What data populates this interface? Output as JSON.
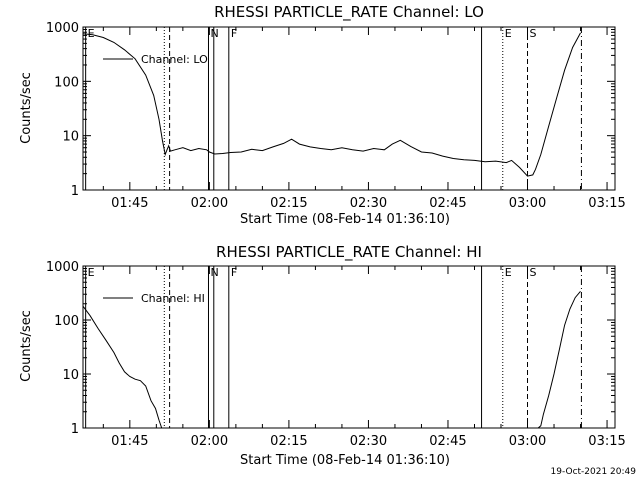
{
  "chart_data": [
    {
      "type": "line",
      "title": "RHESSI PARTICLE_RATE Channel: LO",
      "xlabel": "Start Time (08-Feb-14 01:36:10)",
      "ylabel": "Counts/sec",
      "yscale": "log",
      "ylim": [
        1,
        1000
      ],
      "xlim": [
        "01:36:10",
        "03:16:30"
      ],
      "xticks": [
        "01:45",
        "02:00",
        "02:15",
        "02:30",
        "02:45",
        "03:00",
        "03:15"
      ],
      "yticks": [
        "1",
        "10",
        "100",
        "1000"
      ],
      "legend": {
        "label": "Channel: LO",
        "placement": "top-left"
      },
      "grid": false,
      "event_markers": [
        {
          "label": "E",
          "time": "01:36:40",
          "style": "solid"
        },
        {
          "label": "",
          "time": "01:51:30",
          "style": "dotted"
        },
        {
          "label": "",
          "time": "01:52:30",
          "style": "dashed"
        },
        {
          "label": "N",
          "time": "01:59:50",
          "style": "solid"
        },
        {
          "label": "",
          "time": "02:00:50",
          "style": "solid"
        },
        {
          "label": "F",
          "time": "02:03:40",
          "style": "solid"
        },
        {
          "label": "",
          "time": "02:51:20",
          "style": "solid"
        },
        {
          "label": "E",
          "time": "02:55:20",
          "style": "dotted"
        },
        {
          "label": "S",
          "time": "03:00:00",
          "style": "dashed"
        },
        {
          "label": "",
          "time": "03:10:10",
          "style": "dashdot"
        }
      ],
      "series": [
        {
          "x": [
            "01:36:10",
            "01:38:00",
            "01:40:00",
            "01:42:00",
            "01:44:00",
            "01:46:00",
            "01:48:00",
            "01:49:30",
            "01:50:30",
            "01:51:10",
            "01:51:40",
            "01:52:00",
            "01:52:20",
            "01:52:40",
            "01:53:30",
            "01:55:00",
            "01:56:30",
            "01:58:00",
            "01:59:30",
            "02:00:00",
            "02:01:00",
            "02:02:30",
            "02:04:00",
            "02:06:00",
            "02:08:00",
            "02:10:00",
            "02:12:00",
            "02:14:00",
            "02:15:30",
            "02:17:00",
            "02:19:00",
            "02:21:00",
            "02:23:00",
            "02:25:00",
            "02:27:00",
            "02:29:00",
            "02:31:00",
            "02:33:00",
            "02:34:30",
            "02:36:00",
            "02:38:00",
            "02:40:00",
            "02:42:00",
            "02:44:00",
            "02:46:00",
            "02:48:00",
            "02:50:00",
            "02:52:00",
            "02:54:00",
            "02:56:00",
            "02:57:00",
            "02:58:30",
            "03:00:00",
            "03:01:00",
            "03:01:30",
            "03:02:30",
            "03:04:00",
            "03:05:30",
            "03:07:00",
            "03:08:30",
            "03:10:00"
          ],
          "y": [
            750,
            720,
            640,
            520,
            380,
            260,
            130,
            55,
            20,
            8,
            4.5,
            5.5,
            6.5,
            5.2,
            5.5,
            6,
            5.3,
            5.8,
            5.5,
            5.0,
            4.6,
            4.7,
            4.9,
            5.0,
            5.6,
            5.3,
            6.2,
            7.2,
            8.6,
            7.0,
            6.2,
            5.8,
            5.5,
            6.0,
            5.5,
            5.2,
            5.8,
            5.5,
            7.0,
            8.2,
            6.3,
            5.0,
            4.8,
            4.2,
            3.8,
            3.6,
            3.5,
            3.3,
            3.4,
            3.2,
            3.5,
            2.6,
            1.8,
            1.9,
            2.4,
            4.5,
            15,
            50,
            160,
            420,
            780
          ]
        }
      ]
    },
    {
      "type": "line",
      "title": "RHESSI PARTICLE_RATE Channel: HI",
      "xlabel": "Start Time (08-Feb-14 01:36:10)",
      "ylabel": "Counts/sec",
      "yscale": "log",
      "ylim": [
        1,
        1000
      ],
      "xlim": [
        "01:36:10",
        "03:16:30"
      ],
      "xticks": [
        "01:45",
        "02:00",
        "02:15",
        "02:30",
        "02:45",
        "03:00",
        "03:15"
      ],
      "yticks": [
        "1",
        "10",
        "100",
        "1000"
      ],
      "legend": {
        "label": "Channel: HI",
        "placement": "top-left"
      },
      "grid": false,
      "event_markers": [
        {
          "label": "E",
          "time": "01:36:40",
          "style": "solid"
        },
        {
          "label": "",
          "time": "01:51:30",
          "style": "dotted"
        },
        {
          "label": "",
          "time": "01:52:30",
          "style": "dashed"
        },
        {
          "label": "N",
          "time": "01:59:50",
          "style": "solid"
        },
        {
          "label": "",
          "time": "02:00:50",
          "style": "solid"
        },
        {
          "label": "F",
          "time": "02:03:40",
          "style": "solid"
        },
        {
          "label": "",
          "time": "02:51:20",
          "style": "solid"
        },
        {
          "label": "E",
          "time": "02:55:20",
          "style": "dotted"
        },
        {
          "label": "S",
          "time": "03:00:00",
          "style": "dashed"
        },
        {
          "label": "",
          "time": "03:10:10",
          "style": "dashdot"
        }
      ],
      "series": [
        {
          "x": [
            "01:36:10",
            "01:37:30",
            "01:39:00",
            "01:40:30",
            "01:42:00",
            "01:43:00",
            "01:44:00",
            "01:45:00",
            "01:46:00",
            "01:47:00",
            "01:48:00",
            "01:49:00",
            "01:49:50",
            "01:50:30",
            "01:51:00",
            "03:02:00",
            "03:02:30",
            "03:03:00",
            "03:04:00",
            "03:05:00",
            "03:06:00",
            "03:07:00",
            "03:08:00",
            "03:09:00",
            "03:10:00"
          ],
          "y": [
            180,
            120,
            70,
            42,
            25,
            16,
            11,
            9,
            8,
            7.5,
            6,
            3.2,
            2.3,
            1.4,
            1,
            1,
            1.1,
            1.8,
            4,
            10,
            28,
            80,
            160,
            260,
            340
          ]
        }
      ]
    }
  ],
  "footer": {
    "timestamp": "19-Oct-2021 20:49"
  }
}
